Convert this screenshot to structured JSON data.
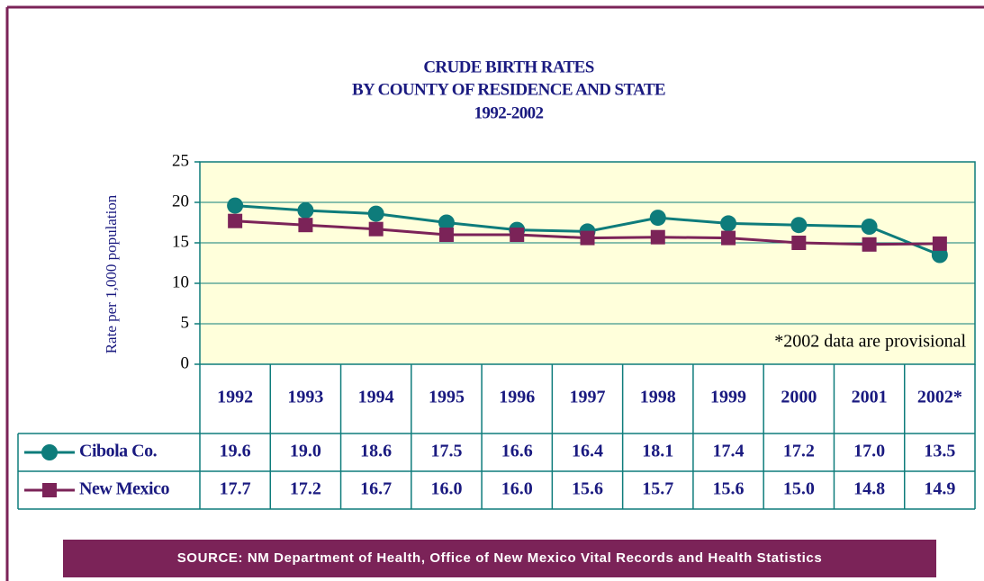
{
  "chart_data": {
    "type": "line",
    "title": [
      "CRUDE BIRTH RATES",
      "BY COUNTY OF RESIDENCE AND STATE",
      "1992-2002"
    ],
    "y_label": "Rate per 1,000 population",
    "categories": [
      "1992",
      "1993",
      "1994",
      "1995",
      "1996",
      "1997",
      "1998",
      "1999",
      "2000",
      "2001",
      "2002*"
    ],
    "series": [
      {
        "name": "Cibola Co.",
        "color": "#0e7c7b",
        "marker": "circle",
        "values": [
          19.6,
          19.0,
          18.6,
          17.5,
          16.6,
          16.4,
          18.1,
          17.4,
          17.2,
          17.0,
          13.5
        ],
        "value_labels": [
          "19.6",
          "19.0",
          "18.6",
          "17.5",
          "16.6",
          "16.4",
          "18.1",
          "17.4",
          "17.2",
          "17.0",
          "13.5"
        ]
      },
      {
        "name": "New Mexico",
        "color": "#7b2358",
        "marker": "square",
        "values": [
          17.7,
          17.2,
          16.7,
          16.0,
          16.0,
          15.6,
          15.7,
          15.6,
          15.0,
          14.8,
          14.9
        ],
        "value_labels": [
          "17.7",
          "17.2",
          "16.7",
          "16.0",
          "16.0",
          "15.6",
          "15.7",
          "15.6",
          "15.0",
          "14.8",
          "14.9"
        ]
      }
    ],
    "ylim": [
      0,
      25
    ],
    "yticks": [
      0,
      5,
      10,
      15,
      20,
      25
    ],
    "grid": true,
    "annotation": "*2002 data are provisional",
    "source": "SOURCE: NM Department of  Health, Office of New Mexico Vital Records and Health Statistics"
  }
}
